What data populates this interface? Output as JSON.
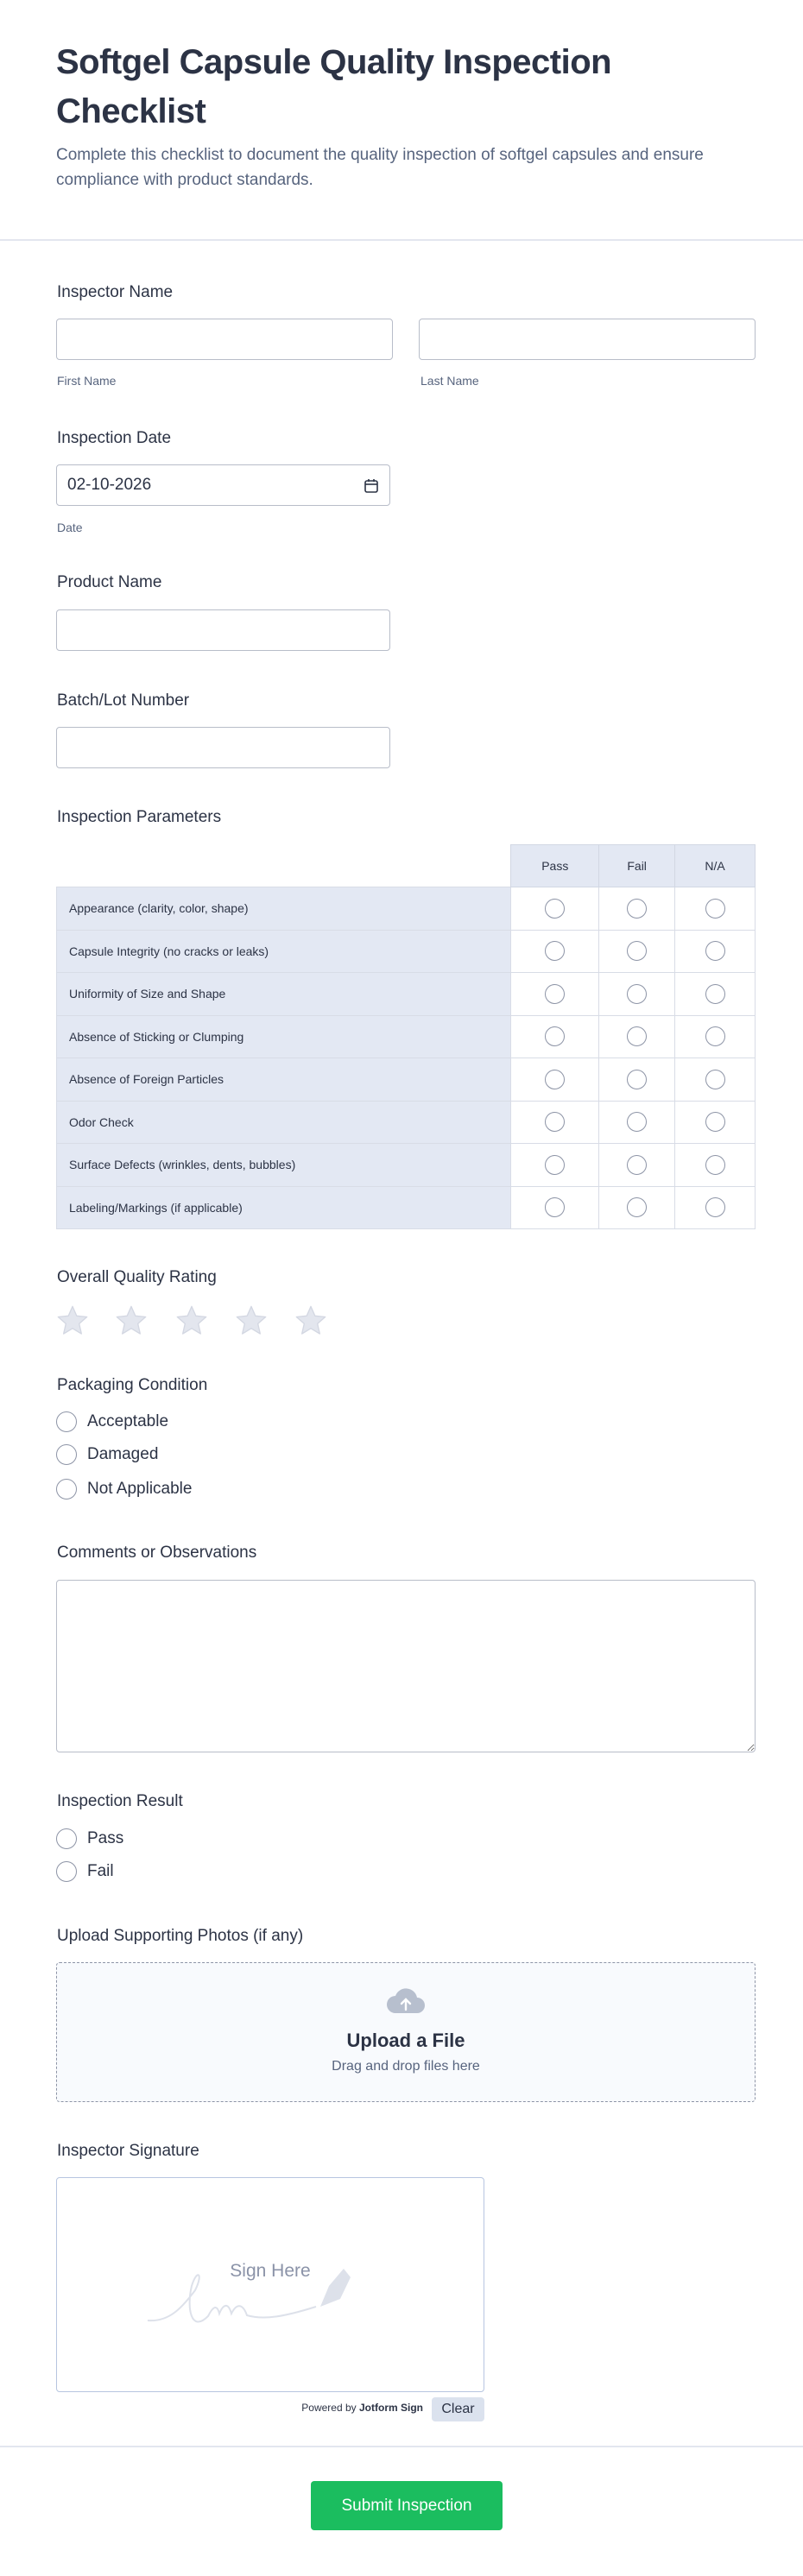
{
  "header": {
    "title": "Softgel Capsule Quality Inspection Checklist",
    "subtitle": "Complete this checklist to document the quality inspection of softgel capsules and ensure compliance with product standards."
  },
  "inspector_name": {
    "label": "Inspector Name",
    "first_value": "",
    "last_value": "",
    "first_sublabel": "First Name",
    "last_sublabel": "Last Name"
  },
  "inspection_date": {
    "label": "Inspection Date",
    "value": "02-10-2026",
    "sublabel": "Date",
    "icon": "calendar-icon"
  },
  "product_name": {
    "label": "Product Name",
    "value": ""
  },
  "batch": {
    "label": "Batch/Lot Number",
    "value": ""
  },
  "parameters": {
    "label": "Inspection Parameters",
    "columns": [
      "Pass",
      "Fail",
      "N/A"
    ],
    "rows": [
      "Appearance (clarity, color, shape)",
      "Capsule Integrity (no cracks or leaks)",
      "Uniformity of Size and Shape",
      "Absence of Sticking or Clumping",
      "Absence of Foreign Particles",
      "Odor Check",
      "Surface Defects (wrinkles, dents, bubbles)",
      "Labeling/Markings (if applicable)"
    ]
  },
  "rating": {
    "label": "Overall Quality Rating",
    "max": 5,
    "value": 0
  },
  "packaging": {
    "label": "Packaging Condition",
    "options": [
      "Acceptable",
      "Damaged",
      "Not Applicable"
    ]
  },
  "comments": {
    "label": "Comments or Observations",
    "value": ""
  },
  "result": {
    "label": "Inspection Result",
    "options": [
      "Pass",
      "Fail"
    ]
  },
  "upload": {
    "label": "Upload Supporting Photos (if any)",
    "title": "Upload a File",
    "hint": "Drag and drop files here",
    "icon": "cloud-upload-icon"
  },
  "signature": {
    "label": "Inspector Signature",
    "placeholder": "Sign Here",
    "powered_prefix": "Powered by",
    "powered_brand": "Jotform Sign",
    "clear": "Clear"
  },
  "submit": {
    "label": "Submit Inspection"
  },
  "colors": {
    "accent": "#1bbd5f",
    "text": "#2c3345",
    "muted": "#57647e",
    "table_bg": "#e3e8f3"
  }
}
